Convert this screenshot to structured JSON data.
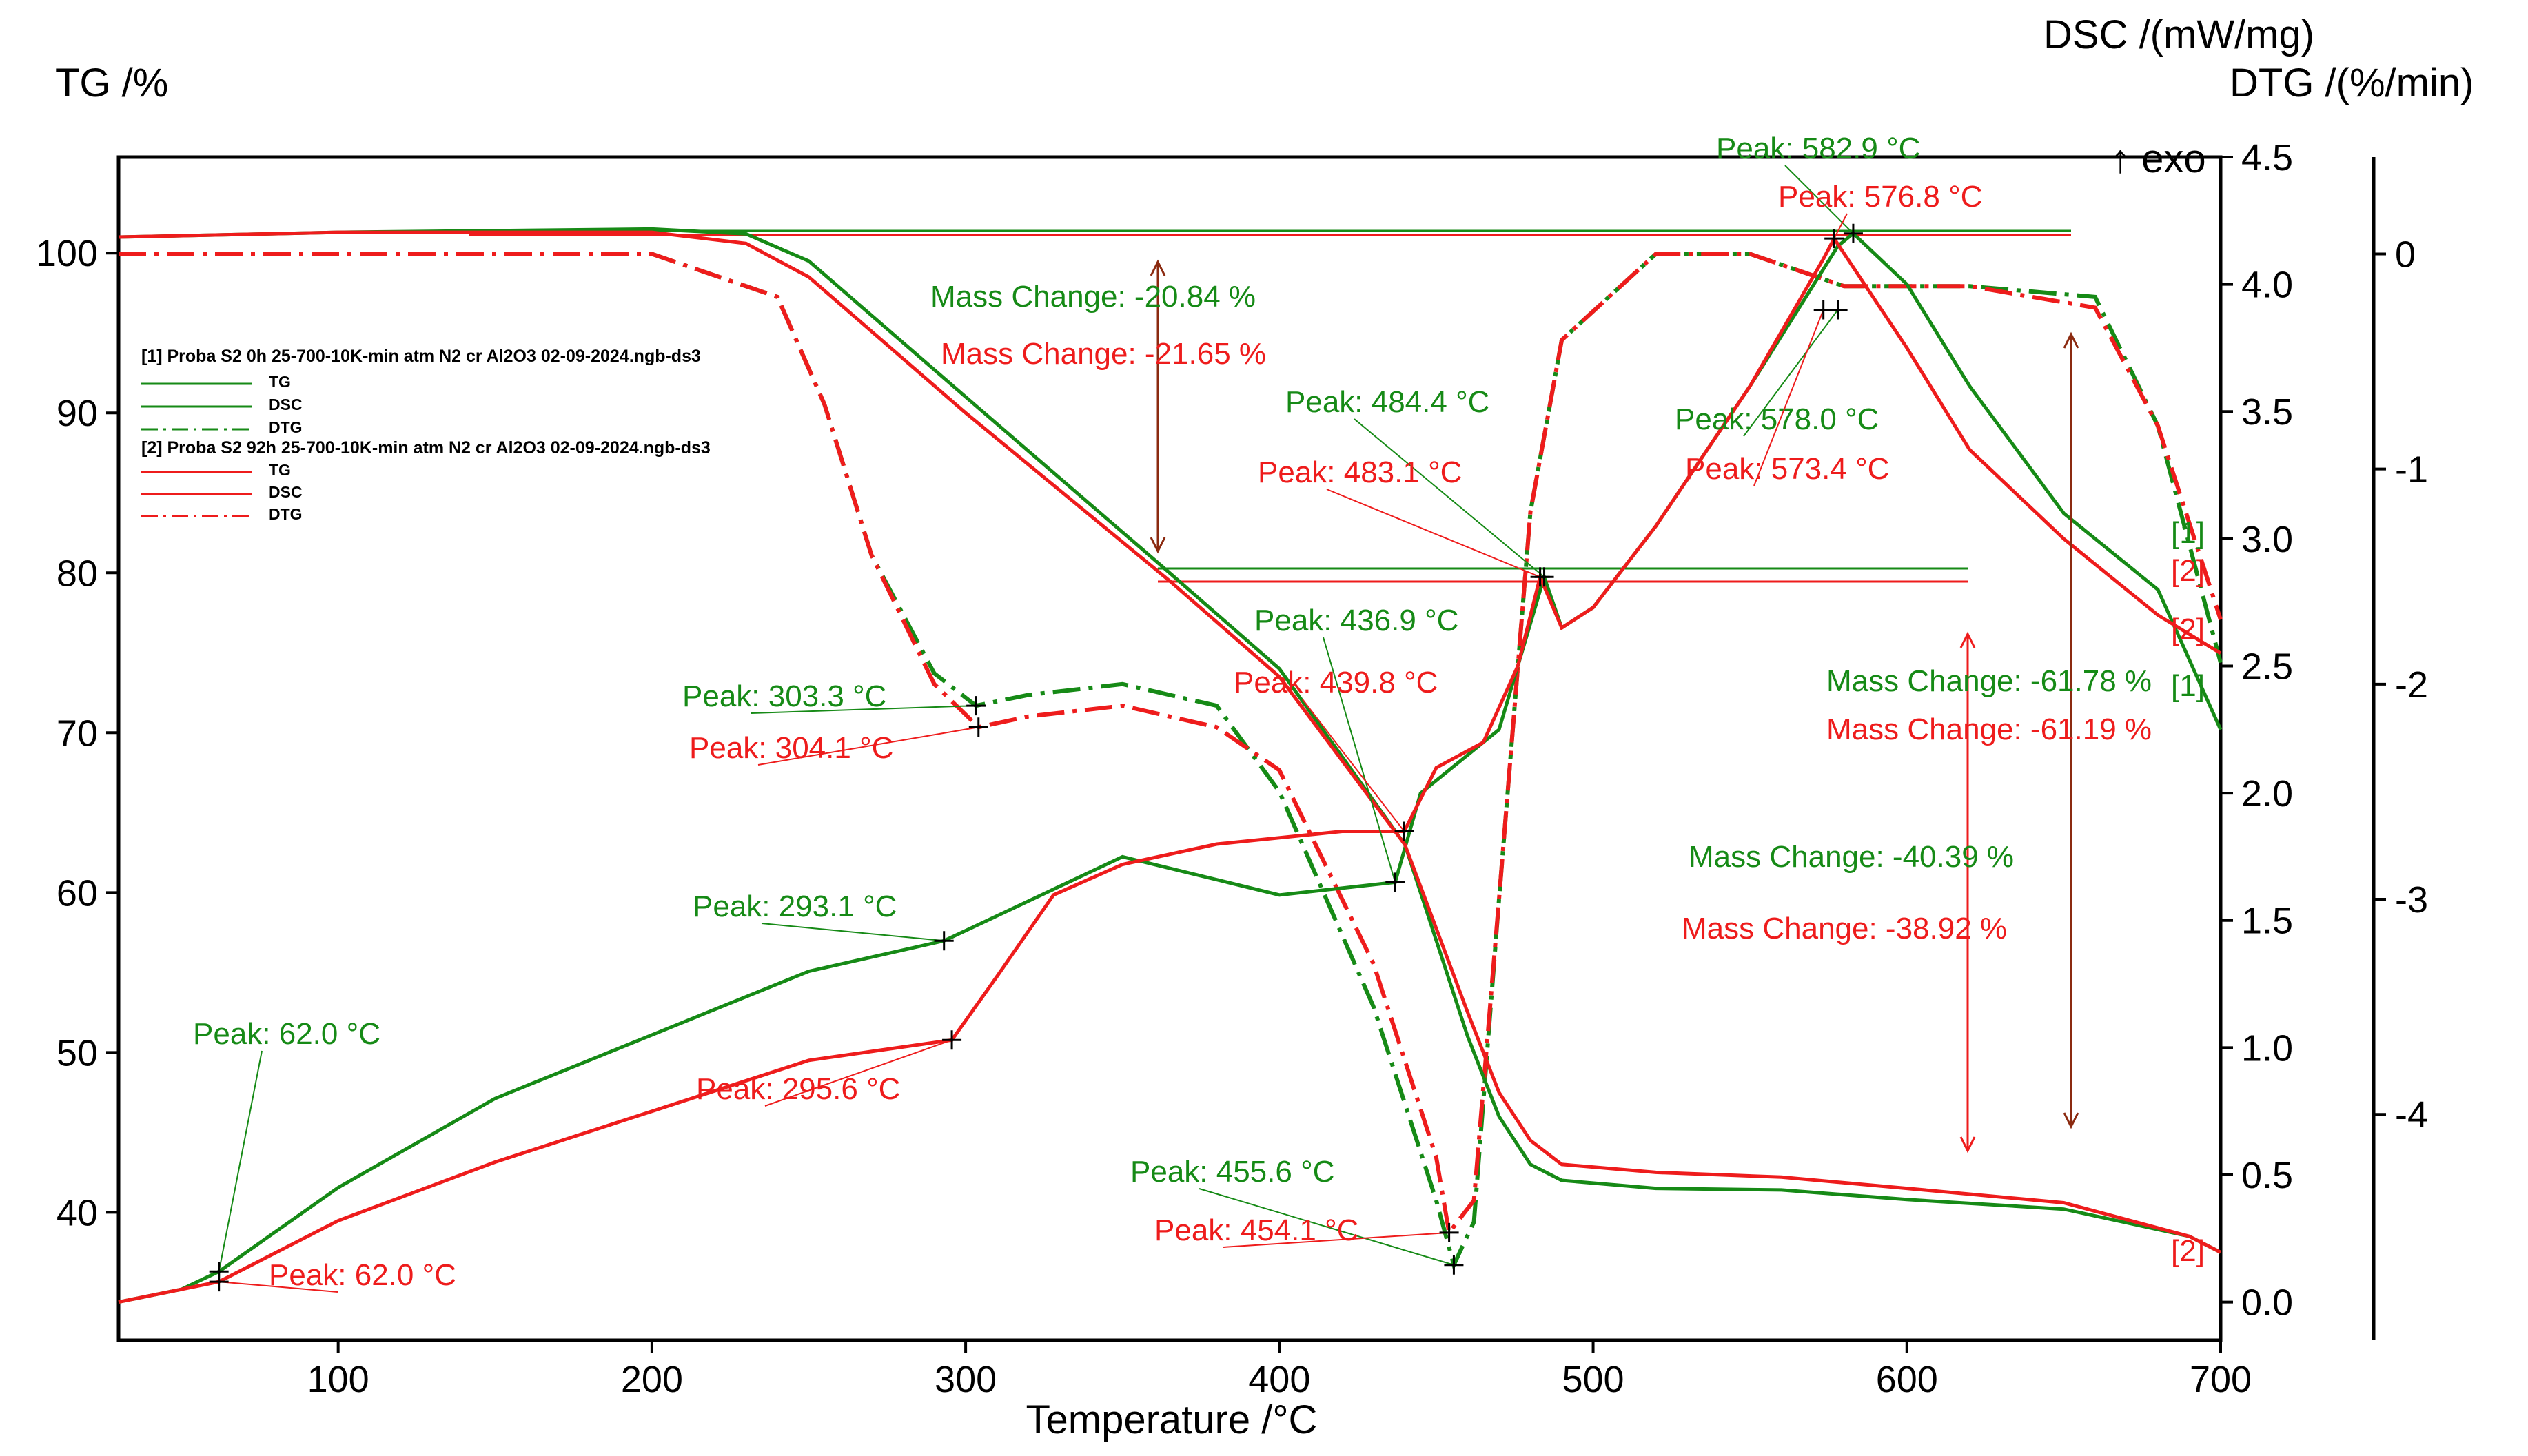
{
  "colors": {
    "sample1": "#168a16",
    "sample2": "#ee1c1c",
    "mass_arrow2": "#8b2a10",
    "axis": "#000000"
  },
  "chart_data": {
    "type": "line",
    "xlabel": "Temperature /°C",
    "ylabel_left": "TG /%",
    "ylabel_right1": "DSC /(mW/mg)",
    "ylabel_right2": "DTG /(%/min)",
    "exo_label": "↑ exo",
    "xlim": [
      30,
      700
    ],
    "tg_ylim": [
      32,
      106
    ],
    "dsc_ylim": [
      -0.15,
      4.5
    ],
    "dtg_ylim": [
      -5.05,
      0.45
    ],
    "x_ticks": [
      "100",
      "200",
      "300",
      "400",
      "500",
      "600",
      "700"
    ],
    "tg_ticks": [
      "40",
      "50",
      "60",
      "70",
      "80",
      "90",
      "100"
    ],
    "dsc_ticks": [
      "0.0",
      "0.5",
      "1.0",
      "1.5",
      "2.0",
      "2.5",
      "3.0",
      "3.5",
      "4.0",
      "4.5"
    ],
    "dtg_ticks": [
      "-4",
      "-3",
      "-2",
      "-1",
      "0"
    ],
    "legend": {
      "file1": "[1] Proba S2 0h 25-700-10K-min atm N2 cr Al2O3 02-09-2024.ngb-ds3",
      "file2": "[2] Proba S2 92h 25-700-10K-min atm N2 cr Al2O3 02-09-2024.ngb-ds3",
      "entries": [
        "TG",
        "DSC",
        "DTG"
      ]
    },
    "curve_tags": [
      "[1]",
      "[2]"
    ],
    "series": [
      {
        "name": "TG [1]",
        "axis": "tg",
        "x": [
          30,
          100,
          200,
          230,
          250,
          300,
          365,
          400,
          440,
          460,
          470,
          480,
          490,
          520,
          560,
          600,
          650,
          690,
          700
        ],
        "values": [
          101.0,
          101.3,
          101.5,
          101.2,
          99.5,
          91.0,
          80.0,
          74.0,
          63.0,
          51.0,
          46.0,
          43.0,
          42.0,
          41.5,
          41.4,
          40.8,
          40.2,
          38.5,
          37.5
        ]
      },
      {
        "name": "DSC [1]",
        "axis": "dsc",
        "x": [
          30,
          50,
          62,
          100,
          150,
          200,
          250,
          293.1,
          350,
          400,
          436.9,
          445,
          460,
          470,
          476,
          484.4,
          490,
          500,
          520,
          550,
          578,
          582.9,
          600,
          620,
          650,
          680,
          700
        ],
        "values": [
          0.0,
          0.05,
          0.12,
          0.45,
          0.8,
          1.05,
          1.3,
          1.42,
          1.75,
          1.6,
          1.65,
          2.0,
          2.15,
          2.25,
          2.5,
          2.85,
          2.65,
          2.73,
          3.05,
          3.6,
          4.15,
          4.2,
          4.0,
          3.6,
          3.1,
          2.8,
          2.25
        ]
      },
      {
        "name": "DTG [1]",
        "axis": "dtg",
        "x": [
          30,
          100,
          200,
          240,
          255,
          270,
          290,
          303.3,
          320,
          350,
          380,
          400,
          430,
          450,
          455.6,
          462,
          470,
          480,
          490,
          520,
          550,
          580,
          620,
          660,
          680,
          700
        ],
        "values": [
          0.0,
          0.0,
          0.0,
          -0.2,
          -0.7,
          -1.4,
          -1.95,
          -2.1,
          -2.05,
          -2.0,
          -2.1,
          -2.5,
          -3.5,
          -4.4,
          -4.7,
          -4.5,
          -3.0,
          -1.2,
          -0.4,
          0.0,
          0.0,
          -0.15,
          -0.15,
          -0.2,
          -0.8,
          -1.9
        ]
      },
      {
        "name": "TG [2]",
        "axis": "tg",
        "x": [
          30,
          100,
          200,
          230,
          250,
          300,
          365,
          400,
          440,
          460,
          470,
          480,
          490,
          520,
          560,
          600,
          650,
          690,
          700
        ],
        "values": [
          101.0,
          101.3,
          101.3,
          100.6,
          98.5,
          90.0,
          79.5,
          73.5,
          63.0,
          52.5,
          47.5,
          44.5,
          43.0,
          42.5,
          42.2,
          41.5,
          40.6,
          38.5,
          37.5
        ]
      },
      {
        "name": "DSC [2]",
        "axis": "dsc",
        "x": [
          30,
          50,
          62,
          100,
          150,
          200,
          250,
          295.6,
          310,
          328,
          350,
          380,
          420,
          439.8,
          450,
          465,
          476,
          483.1,
          490,
          500,
          520,
          550,
          573.4,
          576.8,
          600,
          620,
          650,
          680,
          700
        ],
        "values": [
          0.0,
          0.05,
          0.08,
          0.32,
          0.55,
          0.75,
          0.95,
          1.03,
          1.28,
          1.6,
          1.72,
          1.8,
          1.85,
          1.85,
          2.1,
          2.2,
          2.5,
          2.85,
          2.65,
          2.73,
          3.05,
          3.6,
          4.1,
          4.18,
          3.75,
          3.35,
          3.0,
          2.7,
          2.55
        ]
      },
      {
        "name": "DTG [2]",
        "axis": "dtg",
        "x": [
          30,
          100,
          200,
          240,
          255,
          270,
          290,
          304.1,
          320,
          350,
          380,
          400,
          430,
          450,
          454.1,
          462,
          470,
          480,
          490,
          520,
          550,
          580,
          620,
          660,
          680,
          700
        ],
        "values": [
          0.0,
          0.0,
          0.0,
          -0.2,
          -0.7,
          -1.4,
          -2.0,
          -2.2,
          -2.15,
          -2.1,
          -2.2,
          -2.4,
          -3.3,
          -4.2,
          -4.55,
          -4.4,
          -3.0,
          -1.2,
          -0.4,
          0.0,
          0.0,
          -0.15,
          -0.15,
          -0.25,
          -0.8,
          -1.7
        ]
      }
    ],
    "peaks": [
      {
        "id": "dsc1-62",
        "text": "Peak: 62.0 °C",
        "sample": 1,
        "axis": "dsc",
        "x": 62,
        "y": 0.12
      },
      {
        "id": "dsc2-62",
        "text": "Peak: 62.0 °C",
        "sample": 2,
        "axis": "dsc",
        "x": 62,
        "y": 0.08
      },
      {
        "id": "dsc1-293",
        "text": "Peak: 293.1 °C",
        "sample": 1,
        "axis": "dsc",
        "x": 293.1,
        "y": 1.42
      },
      {
        "id": "dsc2-296",
        "text": "Peak: 295.6 °C",
        "sample": 2,
        "axis": "dsc",
        "x": 295.6,
        "y": 1.03
      },
      {
        "id": "dtg1-303",
        "text": "Peak: 303.3 °C",
        "sample": 1,
        "axis": "dtg",
        "x": 303.3,
        "y": -2.1
      },
      {
        "id": "dtg2-304",
        "text": "Peak: 304.1 °C",
        "sample": 2,
        "axis": "dtg",
        "x": 304.1,
        "y": -2.2
      },
      {
        "id": "dsc1-437",
        "text": "Peak: 436.9 °C",
        "sample": 1,
        "axis": "dsc",
        "x": 436.9,
        "y": 1.65
      },
      {
        "id": "dsc2-440",
        "text": "Peak: 439.8 °C",
        "sample": 2,
        "axis": "dsc",
        "x": 439.8,
        "y": 1.85
      },
      {
        "id": "dtg1-456",
        "text": "Peak: 455.6 °C",
        "sample": 1,
        "axis": "dtg",
        "x": 455.6,
        "y": -4.7
      },
      {
        "id": "dtg2-454",
        "text": "Peak: 454.1 °C",
        "sample": 2,
        "axis": "dtg",
        "x": 454.1,
        "y": -4.55
      },
      {
        "id": "dsc1-484",
        "text": "Peak: 484.4 °C",
        "sample": 1,
        "axis": "dsc",
        "x": 484.4,
        "y": 2.85
      },
      {
        "id": "dsc2-483",
        "text": "Peak: 483.1 °C",
        "sample": 2,
        "axis": "dsc",
        "x": 483.1,
        "y": 2.85
      },
      {
        "id": "dsc1-578",
        "text": "Peak: 578.0 °C",
        "sample": 1,
        "axis": "dsc",
        "x": 578.0,
        "y": 3.9
      },
      {
        "id": "dsc2-573",
        "text": "Peak: 573.4 °C",
        "sample": 2,
        "axis": "dsc",
        "x": 573.4,
        "y": 3.9
      },
      {
        "id": "dsc1-583",
        "text": "Peak: 582.9 °C",
        "sample": 1,
        "axis": "dsc",
        "x": 582.9,
        "y": 4.2
      },
      {
        "id": "dsc2-577",
        "text": "Peak: 576.8 °C",
        "sample": 2,
        "axis": "dsc",
        "x": 576.8,
        "y": 4.18
      }
    ],
    "mass_changes": [
      {
        "id": "mc1-a",
        "text": "Mass Change: -20.84 %",
        "sample": 1,
        "value": -20.84
      },
      {
        "id": "mc2-a",
        "text": "Mass Change: -21.65 %",
        "sample": 2,
        "value": -21.65
      },
      {
        "id": "mc1-b",
        "text": "Mass Change: -40.39 %",
        "sample": 1,
        "value": -40.39
      },
      {
        "id": "mc2-b",
        "text": "Mass Change: -38.92 %",
        "sample": 2,
        "value": -38.92
      },
      {
        "id": "mc1-c",
        "text": "Mass Change: -61.78 %",
        "sample": 1,
        "value": -61.78
      },
      {
        "id": "mc2-c",
        "text": "Mass Change: -61.19 %",
        "sample": 2,
        "value": -61.19
      }
    ]
  }
}
